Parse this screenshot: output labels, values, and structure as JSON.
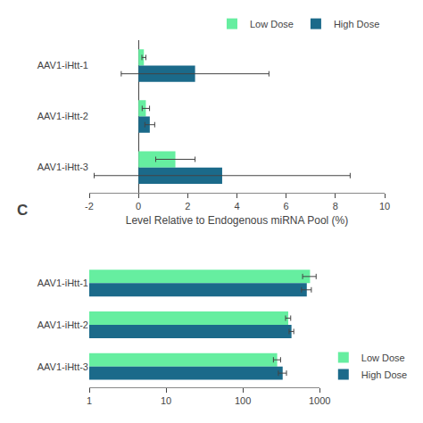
{
  "chart_data": [
    {
      "type": "bar",
      "orientation": "horizontal",
      "categories": [
        "AAV1-iHtt-1",
        "AAV1-iHtt-2",
        "AAV1-iHtt-3"
      ],
      "series": [
        {
          "name": "Low Dose",
          "color": "#66EEA0",
          "values": [
            0.22,
            0.3,
            1.5
          ],
          "errors": [
            0.08,
            0.15,
            0.8
          ]
        },
        {
          "name": "High Dose",
          "color": "#1B6A8A",
          "values": [
            2.3,
            0.46,
            3.4
          ],
          "errors": [
            3.0,
            0.2,
            5.2
          ]
        }
      ],
      "xlabel": "Level Relative to Endogenous miRNA Pool (%)",
      "xlim": [
        -2,
        10
      ],
      "xticks": [
        -2,
        0,
        2,
        4,
        6,
        8,
        10
      ],
      "grid": false,
      "legend": "upper right"
    },
    {
      "type": "bar",
      "orientation": "horizontal",
      "categories": [
        "AAV1-iHtt-1",
        "AAV1-iHtt-2",
        "AAV1-iHtt-3"
      ],
      "series": [
        {
          "name": "Low Dose",
          "color": "#66EEA0",
          "values": [
            750,
            390,
            280
          ],
          "errors": [
            150,
            30,
            30
          ]
        },
        {
          "name": "High Dose",
          "color": "#1B6A8A",
          "values": [
            680,
            430,
            330
          ],
          "errors": [
            100,
            30,
            40
          ]
        }
      ],
      "log": "x",
      "xlim": [
        1,
        1000
      ],
      "xticks": [
        1,
        10,
        100,
        1000
      ],
      "grid": false,
      "legend": "lower right",
      "annotations": [
        "C"
      ]
    }
  ]
}
